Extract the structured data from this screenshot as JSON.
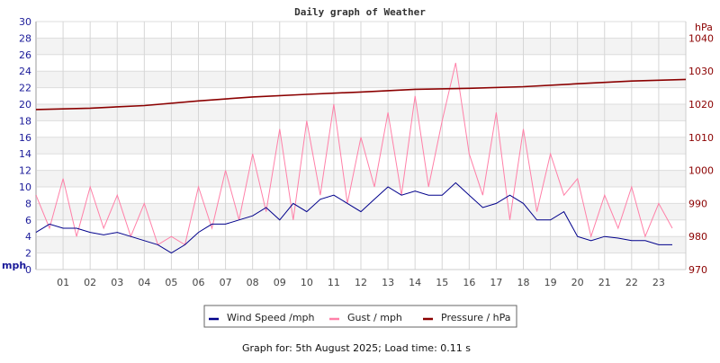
{
  "chart_data": {
    "type": "line",
    "title": "Daily graph of Weather",
    "footer": "Graph for: 5th August 2025; Load time: 0.11 s",
    "ylabel_left": "mph",
    "ylabel_right": "hPa",
    "ylim_left": [
      0,
      30
    ],
    "ylim_right": [
      970,
      1045
    ],
    "xlim": [
      0,
      24
    ],
    "yticks_left": [
      "0",
      "2",
      "4",
      "6",
      "8",
      "10",
      "12",
      "14",
      "16",
      "18",
      "20",
      "22",
      "24",
      "26",
      "28",
      "30"
    ],
    "yticks_right": [
      "970",
      "980",
      "990",
      "1000",
      "1010",
      "1020",
      "1030",
      "1040"
    ],
    "xticks": [
      "01",
      "02",
      "03",
      "04",
      "05",
      "06",
      "07",
      "08",
      "09",
      "10",
      "11",
      "12",
      "13",
      "14",
      "15",
      "16",
      "17",
      "18",
      "19",
      "20",
      "21",
      "22",
      "23"
    ],
    "grid": true,
    "legend_placement": "bottom",
    "x_hours": [
      0,
      0.5,
      1,
      1.5,
      2,
      2.5,
      3,
      3.5,
      4,
      4.5,
      5,
      5.5,
      6,
      6.5,
      7,
      7.5,
      8,
      8.5,
      9,
      9.5,
      10,
      10.5,
      11,
      11.5,
      12,
      12.5,
      13,
      13.5,
      14,
      14.5,
      15,
      15.5,
      16,
      16.5,
      17,
      17.5,
      18,
      18.5,
      19,
      19.5,
      20,
      20.5,
      21,
      21.5,
      22,
      22.5,
      23,
      23.5
    ],
    "series": [
      {
        "name": "Wind Speed /mph",
        "axis": "left",
        "color": "#00008b",
        "values": [
          4.5,
          5.5,
          5,
          5,
          4.5,
          4.2,
          4.5,
          4,
          3.5,
          3,
          2,
          3,
          4.5,
          5.5,
          5.5,
          6,
          6.5,
          7.5,
          6,
          8,
          7,
          8.5,
          9,
          8,
          7,
          8.5,
          10,
          9,
          9.5,
          9,
          9,
          10.5,
          9,
          7.5,
          8,
          9,
          8,
          6,
          6,
          7,
          4,
          3.5,
          4,
          3.8,
          3.5,
          3.5,
          3,
          3
        ]
      },
      {
        "name": "Gust / mph",
        "axis": "left",
        "color": "#ff80a8",
        "values": [
          9,
          5,
          11,
          4,
          10,
          5,
          9,
          4,
          8,
          3,
          4,
          3,
          10,
          5,
          12,
          6,
          14,
          7,
          17,
          6,
          18,
          9,
          20,
          8,
          16,
          10,
          19,
          9,
          21,
          10,
          18,
          25,
          14,
          9,
          19,
          6,
          17,
          7,
          14,
          9,
          11,
          4,
          9,
          5,
          10,
          4,
          8,
          5
        ]
      },
      {
        "name": "Pressure / hPa",
        "axis": "right",
        "color": "#8b0000",
        "x": [
          0,
          2,
          4,
          6,
          8,
          10,
          12,
          14,
          16,
          18,
          20,
          22,
          24
        ],
        "values": [
          1018.4,
          1018.8,
          1019.6,
          1021,
          1022.2,
          1023,
          1023.7,
          1024.5,
          1024.8,
          1025.3,
          1026.2,
          1027,
          1027.5
        ]
      }
    ]
  }
}
